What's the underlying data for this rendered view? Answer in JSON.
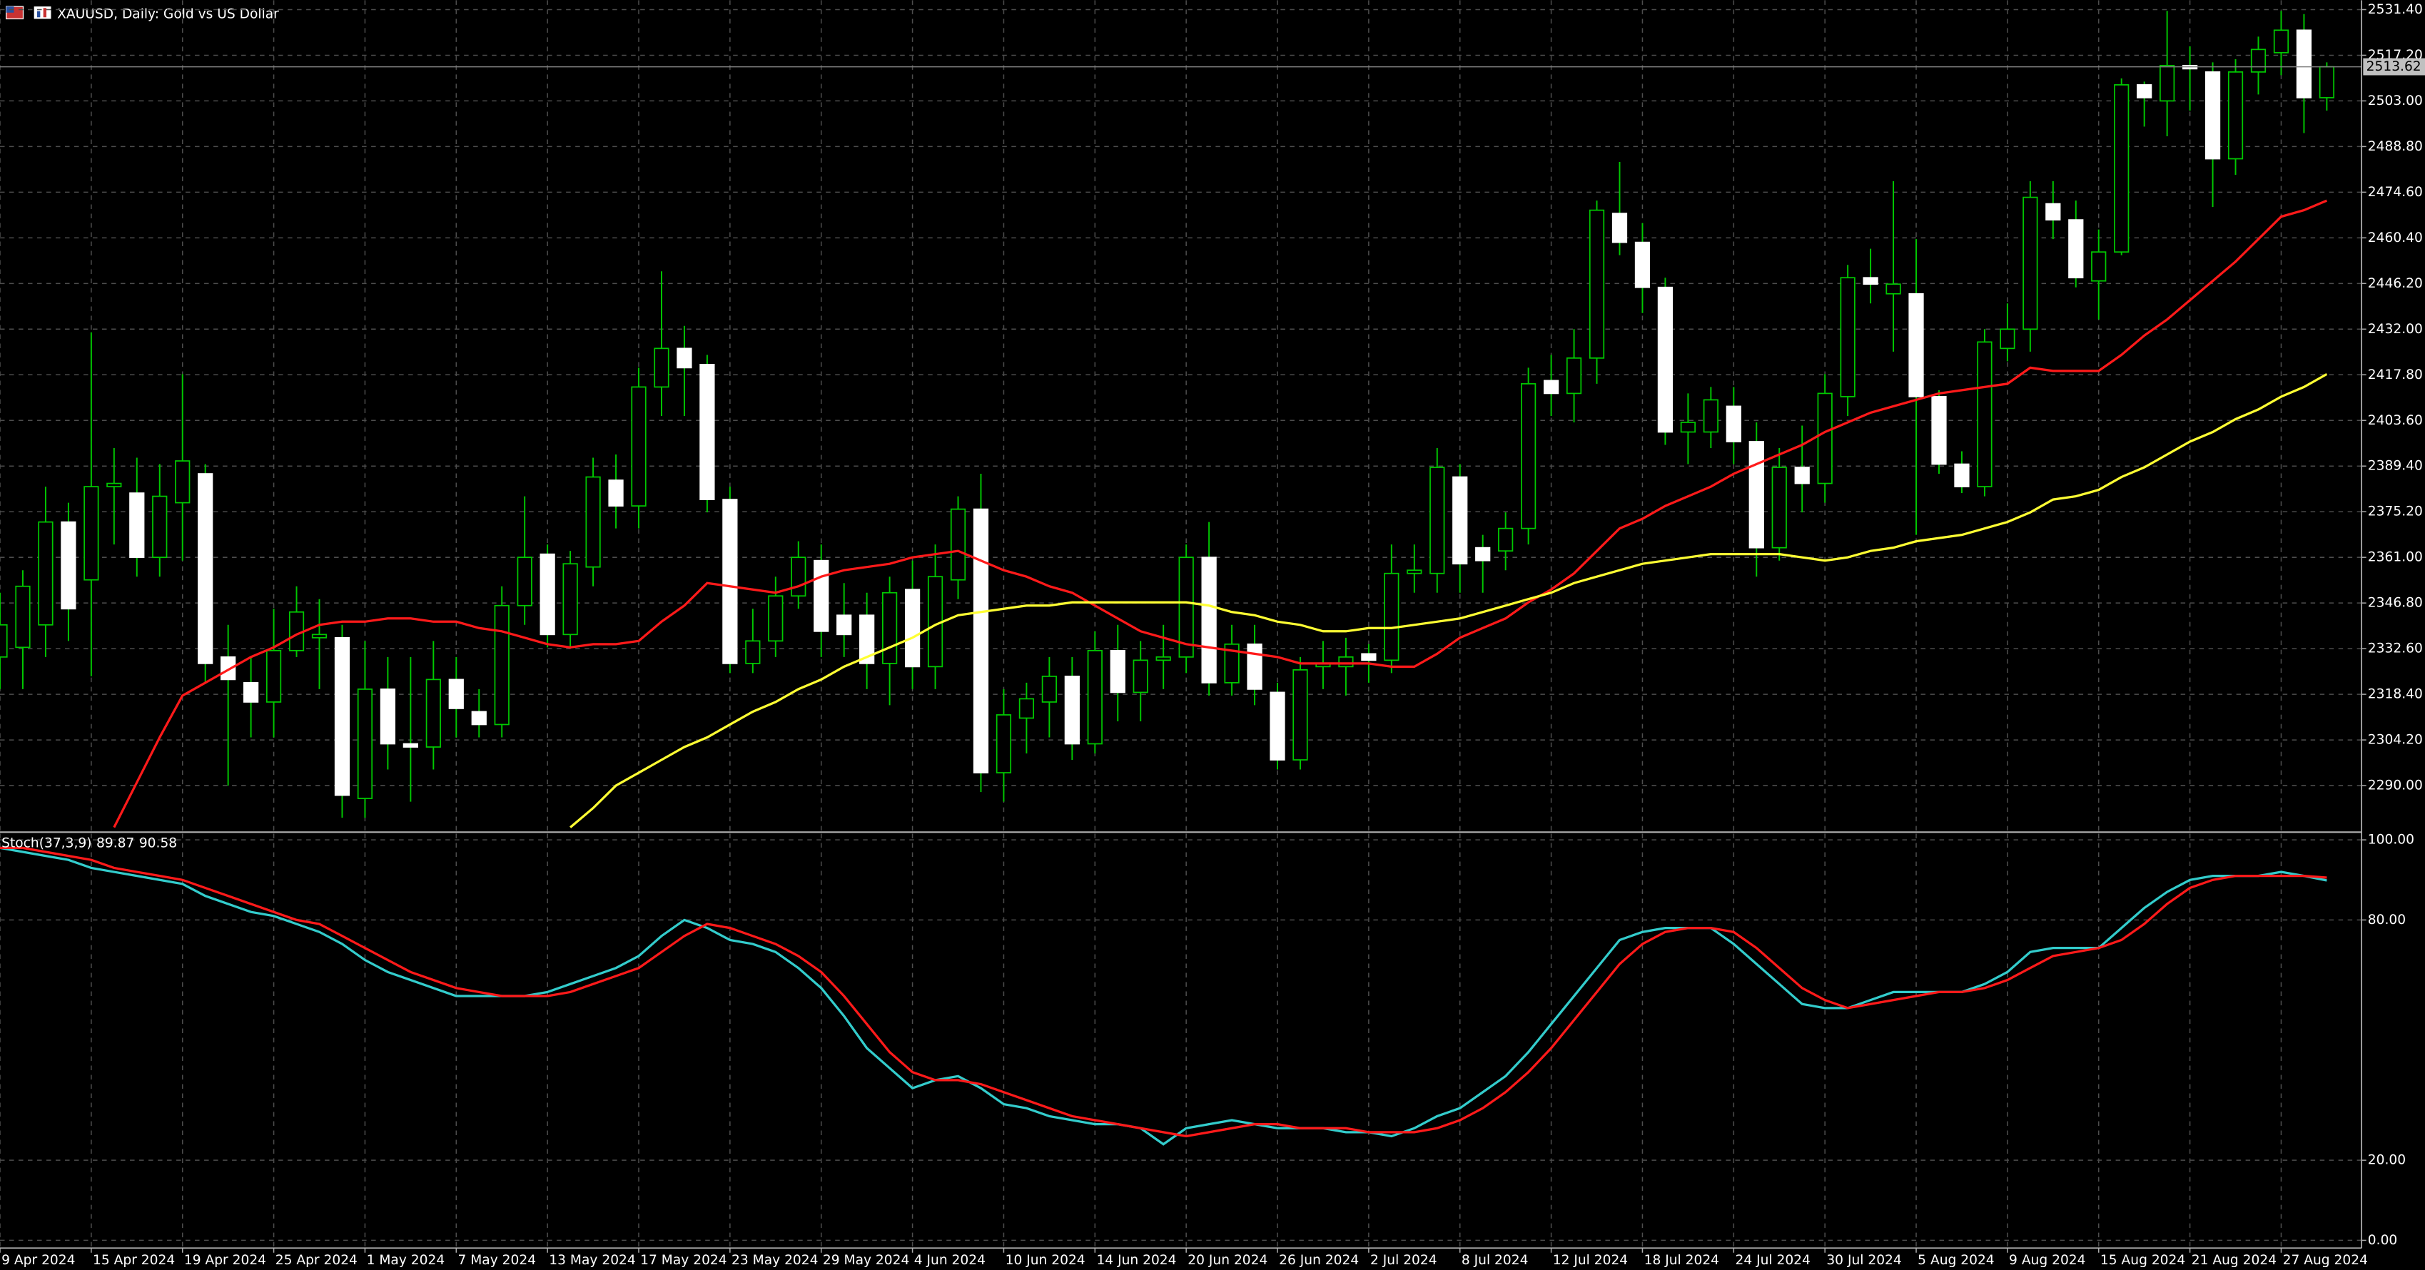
{
  "chart_data": [
    {
      "type": "candlestick",
      "title": "XAUUSD, Daily:  Gold vs US Dollar",
      "categories": [
        "9 Apr 2024",
        null,
        null,
        null,
        "15 Apr 2024",
        null,
        null,
        null,
        "19 Apr 2024",
        null,
        null,
        null,
        "25 Apr 2024",
        null,
        null,
        null,
        "1 May 2024",
        null,
        null,
        null,
        "7 May 2024",
        null,
        null,
        null,
        "13 May 2024",
        null,
        null,
        null,
        "17 May 2024",
        null,
        null,
        null,
        "23 May 2024",
        null,
        null,
        null,
        "29 May 2024",
        null,
        null,
        null,
        "4 Jun 2024",
        null,
        null,
        null,
        "10 Jun 2024",
        null,
        null,
        null,
        "14 Jun 2024",
        null,
        null,
        null,
        "20 Jun 2024",
        null,
        null,
        null,
        "26 Jun 2024",
        null,
        null,
        null,
        "2 Jul 2024",
        null,
        null,
        null,
        "8 Jul 2024",
        null,
        null,
        null,
        "12 Jul 2024",
        null,
        null,
        null,
        "18 Jul 2024",
        null,
        null,
        null,
        "24 Jul 2024",
        null,
        null,
        null,
        "30 Jul 2024",
        null,
        null,
        null,
        "5 Aug 2024",
        null,
        null,
        null,
        "9 Aug 2024",
        null,
        null,
        null,
        "15 Aug 2024",
        null,
        null,
        null,
        "21 Aug 2024",
        null,
        null,
        null,
        "27 Aug 2024",
        null,
        null
      ],
      "open": [
        2330,
        2333,
        2340,
        2372,
        2354,
        2383,
        2381,
        2361,
        2378,
        2387,
        2330,
        2322,
        2316,
        2332,
        2336,
        2336,
        2286,
        2320,
        2303,
        2302,
        2323,
        2313,
        2309,
        2346,
        2362,
        2337,
        2358,
        2385,
        2377,
        2414,
        2426,
        2421,
        2379,
        2328,
        2335,
        2349,
        2360,
        2343,
        2343,
        2328,
        2351,
        2327,
        2354,
        2376,
        2294,
        2311,
        2316,
        2324,
        2303,
        2332,
        2319,
        2329,
        2330,
        2361,
        2322,
        2334,
        2319,
        2298,
        2327,
        2327,
        2331,
        2329,
        2356,
        2356,
        2386,
        2364,
        2363,
        2370,
        2416,
        2412,
        2423,
        2468,
        2459,
        2445,
        2400,
        2400,
        2408,
        2397,
        2364,
        2389,
        2384,
        2411,
        2448,
        2443,
        2443,
        2411,
        2390,
        2383,
        2426,
        2432,
        2471,
        2466,
        2447,
        2456,
        2508,
        2503,
        2514,
        2512,
        2485,
        2512,
        2518,
        2525,
        2504
      ],
      "high": [
        2350,
        2357,
        2383,
        2378,
        2431,
        2395,
        2392,
        2390,
        2418,
        2390,
        2340,
        2330,
        2345,
        2352,
        2348,
        2340,
        2335,
        2330,
        2330,
        2335,
        2330,
        2320,
        2352,
        2380,
        2365,
        2363,
        2392,
        2393,
        2420,
        2450,
        2433,
        2424,
        2383,
        2345,
        2355,
        2366,
        2365,
        2353,
        2350,
        2355,
        2360,
        2365,
        2380,
        2387,
        2320,
        2322,
        2330,
        2330,
        2338,
        2340,
        2335,
        2340,
        2365,
        2372,
        2340,
        2340,
        2322,
        2330,
        2335,
        2336,
        2334,
        2365,
        2365,
        2395,
        2390,
        2368,
        2375,
        2420,
        2424,
        2432,
        2472,
        2484,
        2465,
        2448,
        2412,
        2414,
        2414,
        2403,
        2395,
        2402,
        2418,
        2452,
        2457,
        2478,
        2460,
        2413,
        2394,
        2432,
        2440,
        2478,
        2478,
        2472,
        2463,
        2510,
        2509,
        2531,
        2520,
        2515,
        2516,
        2523,
        2531,
        2530,
        2515
      ],
      "low": [
        2320,
        2320,
        2330,
        2335,
        2324,
        2365,
        2355,
        2355,
        2360,
        2322,
        2290,
        2305,
        2305,
        2330,
        2320,
        2280,
        2280,
        2295,
        2285,
        2295,
        2305,
        2305,
        2305,
        2340,
        2333,
        2333,
        2352,
        2370,
        2370,
        2405,
        2405,
        2375,
        2325,
        2325,
        2330,
        2345,
        2330,
        2330,
        2320,
        2315,
        2320,
        2320,
        2348,
        2288,
        2285,
        2300,
        2305,
        2298,
        2300,
        2310,
        2310,
        2320,
        2325,
        2318,
        2318,
        2315,
        2295,
        2295,
        2320,
        2318,
        2322,
        2325,
        2350,
        2350,
        2350,
        2350,
        2357,
        2365,
        2405,
        2403,
        2415,
        2455,
        2437,
        2396,
        2390,
        2395,
        2390,
        2355,
        2360,
        2375,
        2378,
        2405,
        2440,
        2425,
        2368,
        2387,
        2381,
        2380,
        2422,
        2425,
        2460,
        2445,
        2435,
        2455,
        2495,
        2492,
        2500,
        2470,
        2480,
        2505,
        2511,
        2493,
        2500
      ],
      "close": [
        2340,
        2352,
        2372,
        2345,
        2383,
        2384,
        2361,
        2380,
        2391,
        2328,
        2323,
        2316,
        2332,
        2344,
        2337,
        2287,
        2320,
        2303,
        2302,
        2323,
        2314,
        2309,
        2346,
        2361,
        2337,
        2359,
        2386,
        2377,
        2414,
        2426,
        2420,
        2379,
        2328,
        2335,
        2349,
        2361,
        2338,
        2337,
        2328,
        2350,
        2327,
        2355,
        2376,
        2294,
        2312,
        2317,
        2324,
        2303,
        2332,
        2319,
        2329,
        2330,
        2361,
        2322,
        2334,
        2320,
        2298,
        2326,
        2328,
        2330,
        2329,
        2356,
        2357,
        2389,
        2359,
        2360,
        2370,
        2415,
        2412,
        2423,
        2469,
        2459,
        2445,
        2400,
        2403,
        2410,
        2397,
        2364,
        2389,
        2384,
        2412,
        2448,
        2446,
        2446,
        2411,
        2390,
        2383,
        2428,
        2432,
        2473,
        2466,
        2448,
        2456,
        2508,
        2504,
        2514,
        2513,
        2485,
        2512,
        2519,
        2525,
        2504,
        2513.62
      ],
      "series": [
        {
          "color": "#ff1a1a",
          "values": [
            null,
            null,
            null,
            null,
            null,
            2277,
            2291,
            2305,
            2318,
            2322,
            2326,
            2330,
            2333,
            2337,
            2340,
            2341,
            2341,
            2342,
            2342,
            2341,
            2341,
            2339,
            2338,
            2336,
            2334,
            2333,
            2334,
            2334,
            2335,
            2341,
            2346,
            2353,
            2352,
            2351,
            2350,
            2352,
            2355,
            2357,
            2358,
            2359,
            2361,
            2362,
            2363,
            2360,
            2357,
            2355,
            2352,
            2350,
            2346,
            2342,
            2338,
            2336,
            2334,
            2333,
            2332,
            2331,
            2330,
            2328,
            2328,
            2328,
            2328,
            2327,
            2327,
            2331,
            2336,
            2339,
            2342,
            2347,
            2351,
            2356,
            2363,
            2370,
            2373,
            2377,
            2380,
            2383,
            2387,
            2390,
            2393,
            2396,
            2400,
            2403,
            2406,
            2408,
            2410,
            2412,
            2413,
            2414,
            2415,
            2420,
            2419,
            2419,
            2419,
            2424,
            2430,
            2435,
            2441,
            2447,
            2453,
            2460,
            2467,
            2469,
            2472
          ]
        },
        {
          "color": "#ffff33",
          "values": [
            null,
            null,
            null,
            null,
            null,
            null,
            null,
            null,
            null,
            null,
            null,
            null,
            null,
            null,
            null,
            null,
            null,
            null,
            null,
            null,
            null,
            null,
            null,
            null,
            null,
            2277,
            2283,
            2290,
            2294,
            2298,
            2302,
            2305,
            2309,
            2313,
            2316,
            2320,
            2323,
            2327,
            2330,
            2333,
            2336,
            2340,
            2343,
            2344,
            2345,
            2346,
            2346,
            2347,
            2347,
            2347,
            2347,
            2347,
            2347,
            2346,
            2344,
            2343,
            2341,
            2340,
            2338,
            2338,
            2339,
            2339,
            2340,
            2341,
            2342,
            2344,
            2346,
            2348,
            2350,
            2353,
            2355,
            2357,
            2359,
            2360,
            2361,
            2362,
            2362,
            2362,
            2362,
            2361,
            2360,
            2361,
            2363,
            2364,
            2366,
            2367,
            2368,
            2370,
            2372,
            2375,
            2379,
            2380,
            2382,
            2386,
            2389,
            2393,
            2397,
            2400,
            2404,
            2407,
            2411,
            2414,
            2418
          ]
        }
      ],
      "last_price": 2513.62,
      "up_color": "#000000",
      "down_color": "#ffffff",
      "wick_color": "#00c800",
      "ylim": [
        2276,
        2534.3
      ],
      "yticks": [
        {
          "value": 2290,
          "label": "2290.00"
        },
        {
          "value": 2304.2,
          "label": "2304.20"
        },
        {
          "value": 2318.4,
          "label": "2318.40"
        },
        {
          "value": 2332.6,
          "label": "2332.60"
        },
        {
          "value": 2346.8,
          "label": "2346.80"
        },
        {
          "value": 2361,
          "label": "2361.00"
        },
        {
          "value": 2375.2,
          "label": "2375.20"
        },
        {
          "value": 2389.4,
          "label": "2389.40"
        },
        {
          "value": 2403.6,
          "label": "2403.60"
        },
        {
          "value": 2417.8,
          "label": "2417.80"
        },
        {
          "value": 2432,
          "label": "2432.00"
        },
        {
          "value": 2446.2,
          "label": "2446.20"
        },
        {
          "value": 2460.4,
          "label": "2460.40"
        },
        {
          "value": 2474.6,
          "label": "2474.60"
        },
        {
          "value": 2488.8,
          "label": "2488.80"
        },
        {
          "value": 2503,
          "label": "2503.00"
        },
        {
          "value": 2517.2,
          "label": "2517.20"
        },
        {
          "value": 2531.4,
          "label": "2531.40"
        }
      ],
      "grid": true
    },
    {
      "type": "line",
      "title": "Stoch(37,3,9)",
      "series": [
        {
          "color": "#33cccc",
          "values": [
            98,
            97,
            96,
            95,
            93,
            92,
            91,
            90,
            89,
            86,
            84,
            82,
            81,
            79,
            77,
            74,
            70,
            67,
            65,
            63,
            61,
            61,
            61,
            61,
            62,
            64,
            66,
            68,
            71,
            76,
            80,
            78,
            75,
            74,
            72,
            68,
            63,
            56,
            48,
            43,
            38,
            40,
            41,
            38,
            34,
            33,
            31,
            30,
            29,
            29,
            28,
            24,
            28,
            29,
            30,
            29,
            28,
            28,
            28,
            27,
            27,
            26,
            28,
            31,
            33,
            37,
            41,
            47,
            54,
            61,
            68,
            75,
            77,
            78,
            78,
            78,
            74,
            69,
            64,
            59,
            58,
            58,
            60,
            62,
            62,
            62,
            62,
            64,
            67,
            72,
            73,
            73,
            73,
            78,
            83,
            87,
            90,
            91,
            91,
            91,
            92,
            91,
            89.87
          ]
        },
        {
          "color": "#ff1a1a",
          "values": [
            98,
            98,
            97,
            96,
            95,
            93,
            92,
            91,
            90,
            88,
            86,
            84,
            82,
            80,
            79,
            76,
            73,
            70,
            67,
            65,
            63,
            62,
            61,
            61,
            61,
            62,
            64,
            66,
            68,
            72,
            76,
            79,
            78,
            76,
            74,
            71,
            67,
            61,
            54,
            47,
            42,
            40,
            40,
            39,
            37,
            35,
            33,
            31,
            30,
            29,
            28,
            27,
            26,
            27,
            28,
            29,
            29,
            28,
            28,
            28,
            27,
            27,
            27,
            28,
            30,
            33,
            37,
            42,
            48,
            55,
            62,
            69,
            74,
            77,
            78,
            78,
            77,
            73,
            68,
            63,
            60,
            58,
            59,
            60,
            61,
            62,
            62,
            63,
            65,
            68,
            71,
            72,
            73,
            75,
            79,
            84,
            88,
            90,
            91,
            91,
            91,
            91,
            90.58
          ]
        }
      ],
      "ylim": [
        0,
        100
      ],
      "yticks": [
        {
          "value": 0,
          "label": "0.00"
        },
        {
          "value": 20,
          "label": "20.00"
        },
        {
          "value": 80,
          "label": "80.00"
        },
        {
          "value": 100,
          "label": "100.00"
        }
      ],
      "grid": true
    }
  ]
}
